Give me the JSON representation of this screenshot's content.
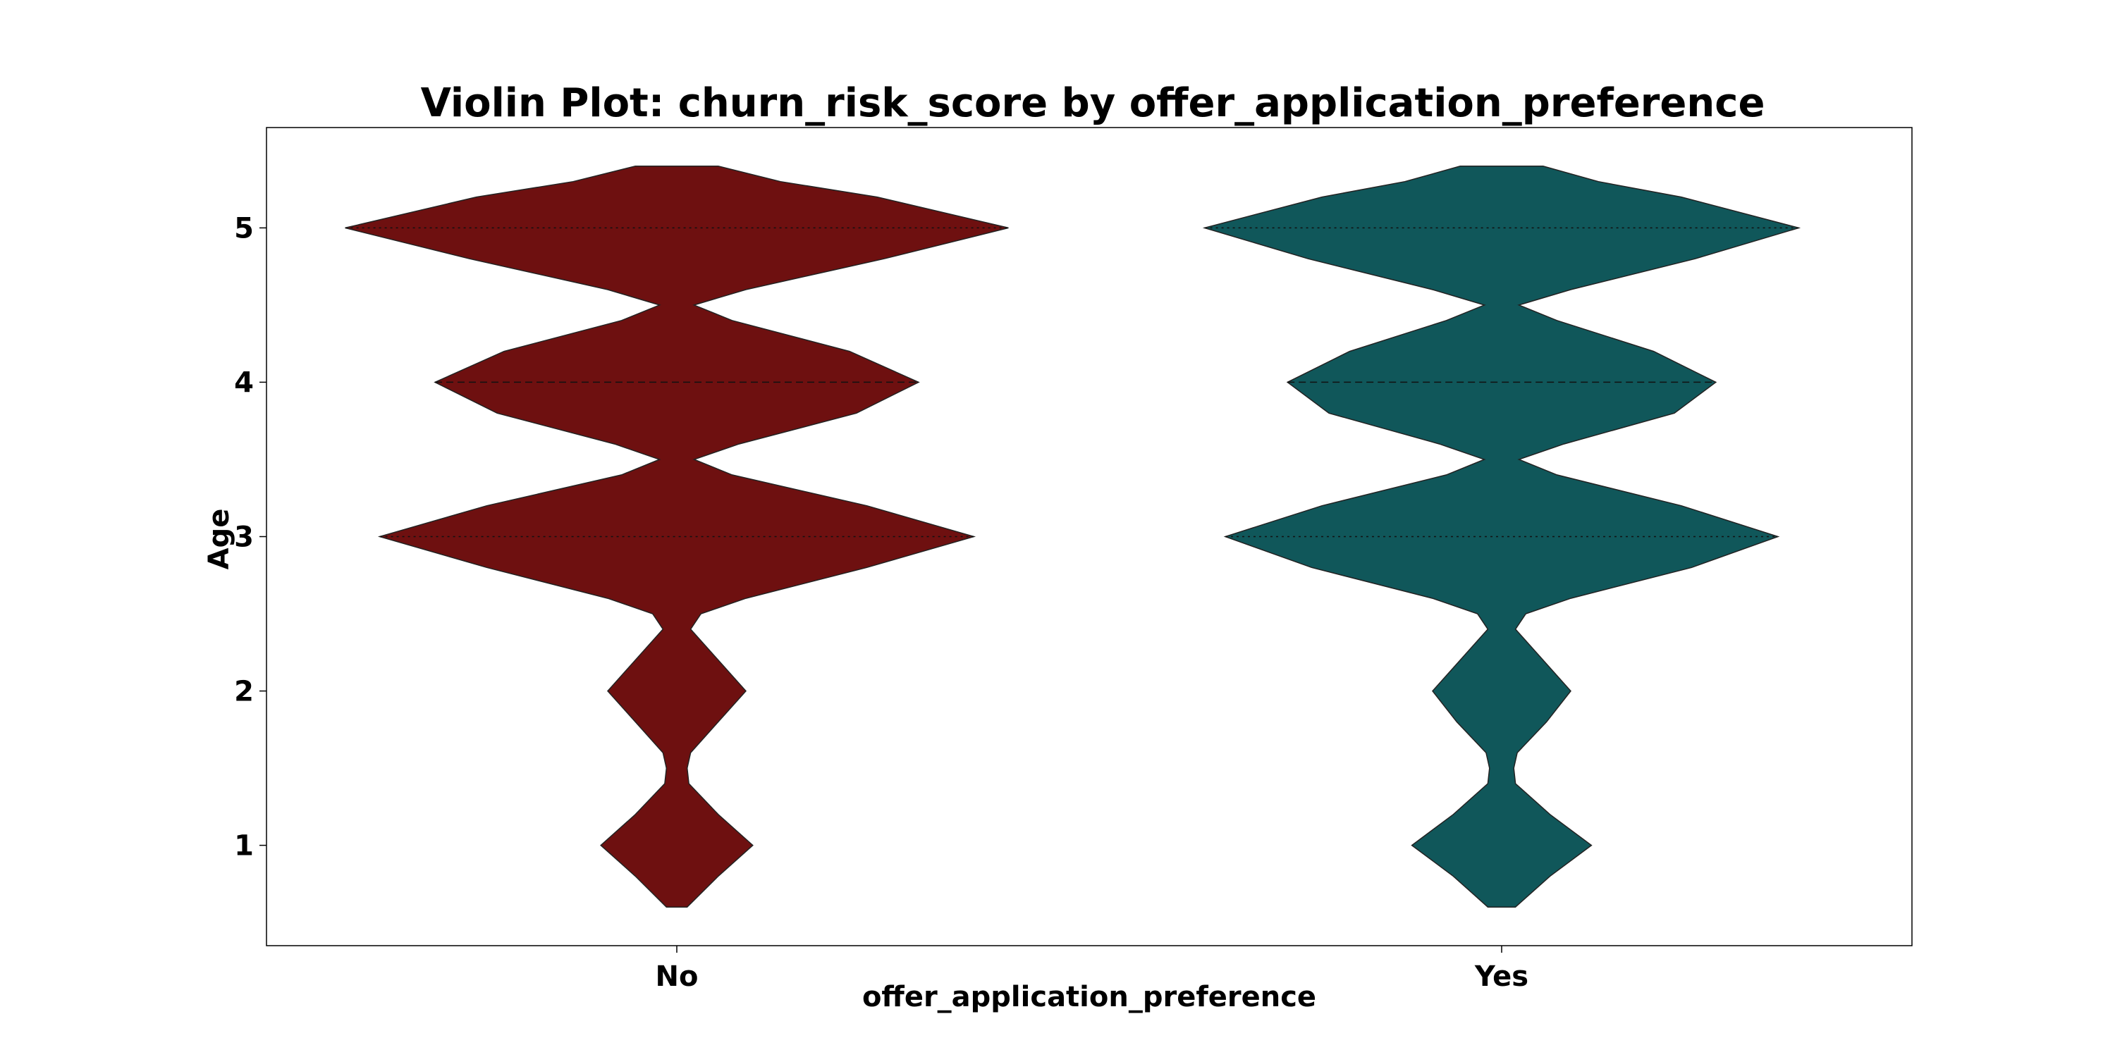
{
  "chart_data": {
    "type": "violin",
    "title": "Violin Plot: churn_risk_score by offer_application_preference",
    "xlabel": "offer_application_preference",
    "ylabel": "Age",
    "categories": [
      "No",
      "Yes"
    ],
    "ylim": [
      0.35,
      5.65
    ],
    "yticks": [
      1,
      2,
      3,
      4,
      5
    ],
    "grid": false,
    "legend": "none",
    "inner": "quartile",
    "colors": [
      "#6e1010",
      "#10575a"
    ],
    "series": [
      {
        "category": "No",
        "y_range": [
          0.6,
          5.4
        ],
        "quartiles": [
          3,
          4,
          5
        ],
        "density_profile": [
          [
            0.6,
            0.03
          ],
          [
            0.8,
            0.12
          ],
          [
            1.0,
            0.22
          ],
          [
            1.2,
            0.12
          ],
          [
            1.4,
            0.035
          ],
          [
            1.5,
            0.03
          ],
          [
            1.6,
            0.04
          ],
          [
            1.8,
            0.12
          ],
          [
            2.0,
            0.2
          ],
          [
            2.2,
            0.12
          ],
          [
            2.4,
            0.04
          ],
          [
            2.5,
            0.07
          ],
          [
            2.6,
            0.2
          ],
          [
            2.8,
            0.55
          ],
          [
            3.0,
            0.86
          ],
          [
            3.2,
            0.55
          ],
          [
            3.4,
            0.16
          ],
          [
            3.5,
            0.05
          ],
          [
            3.6,
            0.18
          ],
          [
            3.8,
            0.52
          ],
          [
            4.0,
            0.7
          ],
          [
            4.2,
            0.5
          ],
          [
            4.4,
            0.16
          ],
          [
            4.5,
            0.05
          ],
          [
            4.6,
            0.2
          ],
          [
            4.8,
            0.6
          ],
          [
            5.0,
            0.96
          ],
          [
            5.2,
            0.58
          ],
          [
            5.3,
            0.3
          ],
          [
            5.4,
            0.12
          ]
        ]
      },
      {
        "category": "Yes",
        "y_range": [
          0.6,
          5.4
        ],
        "quartiles": [
          3,
          4,
          5
        ],
        "density_profile": [
          [
            0.6,
            0.04
          ],
          [
            0.8,
            0.14
          ],
          [
            1.0,
            0.26
          ],
          [
            1.2,
            0.14
          ],
          [
            1.4,
            0.04
          ],
          [
            1.5,
            0.035
          ],
          [
            1.6,
            0.045
          ],
          [
            1.8,
            0.13
          ],
          [
            2.0,
            0.2
          ],
          [
            2.2,
            0.12
          ],
          [
            2.4,
            0.04
          ],
          [
            2.5,
            0.07
          ],
          [
            2.6,
            0.2
          ],
          [
            2.8,
            0.55
          ],
          [
            3.0,
            0.8
          ],
          [
            3.2,
            0.52
          ],
          [
            3.4,
            0.16
          ],
          [
            3.5,
            0.05
          ],
          [
            3.6,
            0.18
          ],
          [
            3.8,
            0.5
          ],
          [
            4.0,
            0.62
          ],
          [
            4.2,
            0.44
          ],
          [
            4.4,
            0.16
          ],
          [
            4.5,
            0.05
          ],
          [
            4.6,
            0.2
          ],
          [
            4.8,
            0.56
          ],
          [
            5.0,
            0.86
          ],
          [
            5.2,
            0.52
          ],
          [
            5.3,
            0.28
          ],
          [
            5.4,
            0.12
          ]
        ]
      }
    ]
  }
}
